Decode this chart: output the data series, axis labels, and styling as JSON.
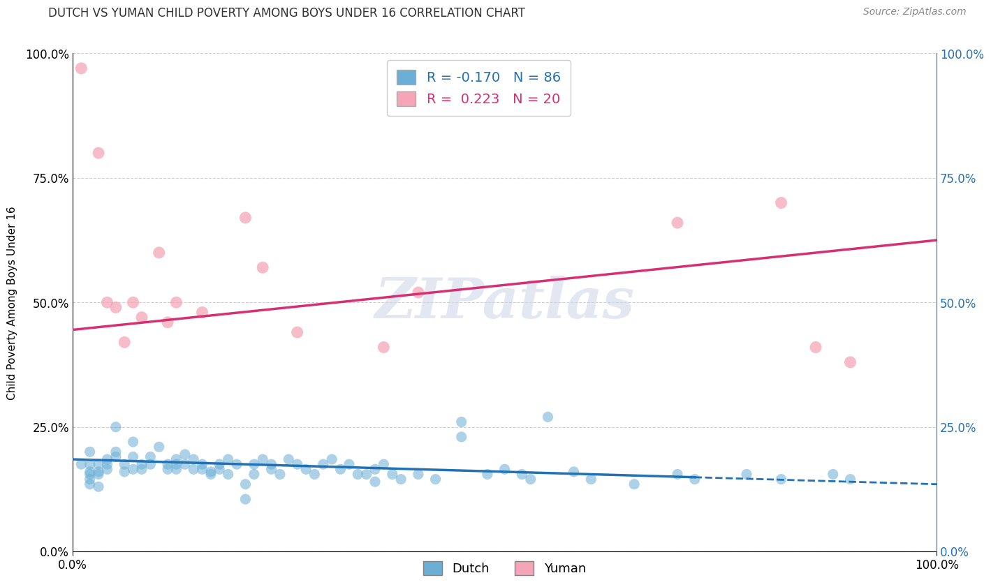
{
  "title": "DUTCH VS YUMAN CHILD POVERTY AMONG BOYS UNDER 16 CORRELATION CHART",
  "source": "Source: ZipAtlas.com",
  "ylabel": "Child Poverty Among Boys Under 16",
  "xlim": [
    0.0,
    1.0
  ],
  "ylim": [
    0.0,
    1.0
  ],
  "xtick_labels": [
    "0.0%",
    "100.0%"
  ],
  "ytick_labels": [
    "0.0%",
    "25.0%",
    "50.0%",
    "75.0%",
    "100.0%"
  ],
  "ytick_positions": [
    0.0,
    0.25,
    0.5,
    0.75,
    1.0
  ],
  "watermark": "ZIPatlas",
  "dutch_color": "#6baed6",
  "yuman_color": "#f4a6b8",
  "dutch_line_color": "#2171b5",
  "yuman_line_color": "#d63073",
  "dutch_R": -0.17,
  "dutch_N": 86,
  "yuman_R": 0.223,
  "yuman_N": 20,
  "dutch_scatter": [
    [
      0.01,
      0.175
    ],
    [
      0.02,
      0.16
    ],
    [
      0.02,
      0.155
    ],
    [
      0.02,
      0.145
    ],
    [
      0.02,
      0.135
    ],
    [
      0.02,
      0.175
    ],
    [
      0.02,
      0.2
    ],
    [
      0.03,
      0.175
    ],
    [
      0.03,
      0.16
    ],
    [
      0.03,
      0.155
    ],
    [
      0.03,
      0.13
    ],
    [
      0.04,
      0.185
    ],
    [
      0.04,
      0.175
    ],
    [
      0.04,
      0.165
    ],
    [
      0.05,
      0.25
    ],
    [
      0.05,
      0.2
    ],
    [
      0.05,
      0.19
    ],
    [
      0.06,
      0.175
    ],
    [
      0.06,
      0.16
    ],
    [
      0.07,
      0.22
    ],
    [
      0.07,
      0.19
    ],
    [
      0.07,
      0.165
    ],
    [
      0.08,
      0.175
    ],
    [
      0.08,
      0.165
    ],
    [
      0.09,
      0.19
    ],
    [
      0.09,
      0.175
    ],
    [
      0.1,
      0.21
    ],
    [
      0.11,
      0.165
    ],
    [
      0.11,
      0.175
    ],
    [
      0.12,
      0.185
    ],
    [
      0.12,
      0.175
    ],
    [
      0.12,
      0.165
    ],
    [
      0.13,
      0.195
    ],
    [
      0.13,
      0.175
    ],
    [
      0.14,
      0.185
    ],
    [
      0.14,
      0.165
    ],
    [
      0.15,
      0.175
    ],
    [
      0.15,
      0.165
    ],
    [
      0.16,
      0.155
    ],
    [
      0.16,
      0.16
    ],
    [
      0.17,
      0.175
    ],
    [
      0.17,
      0.165
    ],
    [
      0.18,
      0.185
    ],
    [
      0.18,
      0.155
    ],
    [
      0.19,
      0.175
    ],
    [
      0.2,
      0.105
    ],
    [
      0.2,
      0.135
    ],
    [
      0.21,
      0.175
    ],
    [
      0.21,
      0.155
    ],
    [
      0.22,
      0.185
    ],
    [
      0.23,
      0.165
    ],
    [
      0.23,
      0.175
    ],
    [
      0.24,
      0.155
    ],
    [
      0.25,
      0.185
    ],
    [
      0.26,
      0.175
    ],
    [
      0.27,
      0.165
    ],
    [
      0.28,
      0.155
    ],
    [
      0.29,
      0.175
    ],
    [
      0.3,
      0.185
    ],
    [
      0.31,
      0.165
    ],
    [
      0.32,
      0.175
    ],
    [
      0.33,
      0.155
    ],
    [
      0.34,
      0.155
    ],
    [
      0.35,
      0.165
    ],
    [
      0.35,
      0.14
    ],
    [
      0.36,
      0.175
    ],
    [
      0.37,
      0.155
    ],
    [
      0.38,
      0.145
    ],
    [
      0.4,
      0.155
    ],
    [
      0.42,
      0.145
    ],
    [
      0.45,
      0.26
    ],
    [
      0.45,
      0.23
    ],
    [
      0.48,
      0.155
    ],
    [
      0.5,
      0.165
    ],
    [
      0.52,
      0.155
    ],
    [
      0.53,
      0.145
    ],
    [
      0.55,
      0.27
    ],
    [
      0.58,
      0.16
    ],
    [
      0.6,
      0.145
    ],
    [
      0.65,
      0.135
    ],
    [
      0.7,
      0.155
    ],
    [
      0.72,
      0.145
    ],
    [
      0.78,
      0.155
    ],
    [
      0.82,
      0.145
    ],
    [
      0.88,
      0.155
    ],
    [
      0.9,
      0.145
    ]
  ],
  "yuman_scatter": [
    [
      0.01,
      0.97
    ],
    [
      0.03,
      0.8
    ],
    [
      0.04,
      0.5
    ],
    [
      0.05,
      0.49
    ],
    [
      0.06,
      0.42
    ],
    [
      0.07,
      0.5
    ],
    [
      0.08,
      0.47
    ],
    [
      0.1,
      0.6
    ],
    [
      0.11,
      0.46
    ],
    [
      0.12,
      0.5
    ],
    [
      0.15,
      0.48
    ],
    [
      0.2,
      0.67
    ],
    [
      0.22,
      0.57
    ],
    [
      0.26,
      0.44
    ],
    [
      0.36,
      0.41
    ],
    [
      0.4,
      0.52
    ],
    [
      0.7,
      0.66
    ],
    [
      0.82,
      0.7
    ],
    [
      0.86,
      0.41
    ],
    [
      0.9,
      0.38
    ]
  ],
  "dutch_line_x": [
    0.0,
    1.0
  ],
  "dutch_line_y_start": 0.185,
  "dutch_line_y_end": 0.135,
  "yuman_line_x": [
    0.0,
    1.0
  ],
  "yuman_line_y_start": 0.445,
  "yuman_line_y_end": 0.625,
  "background_color": "#ffffff",
  "grid_color": "#d0d0d0"
}
